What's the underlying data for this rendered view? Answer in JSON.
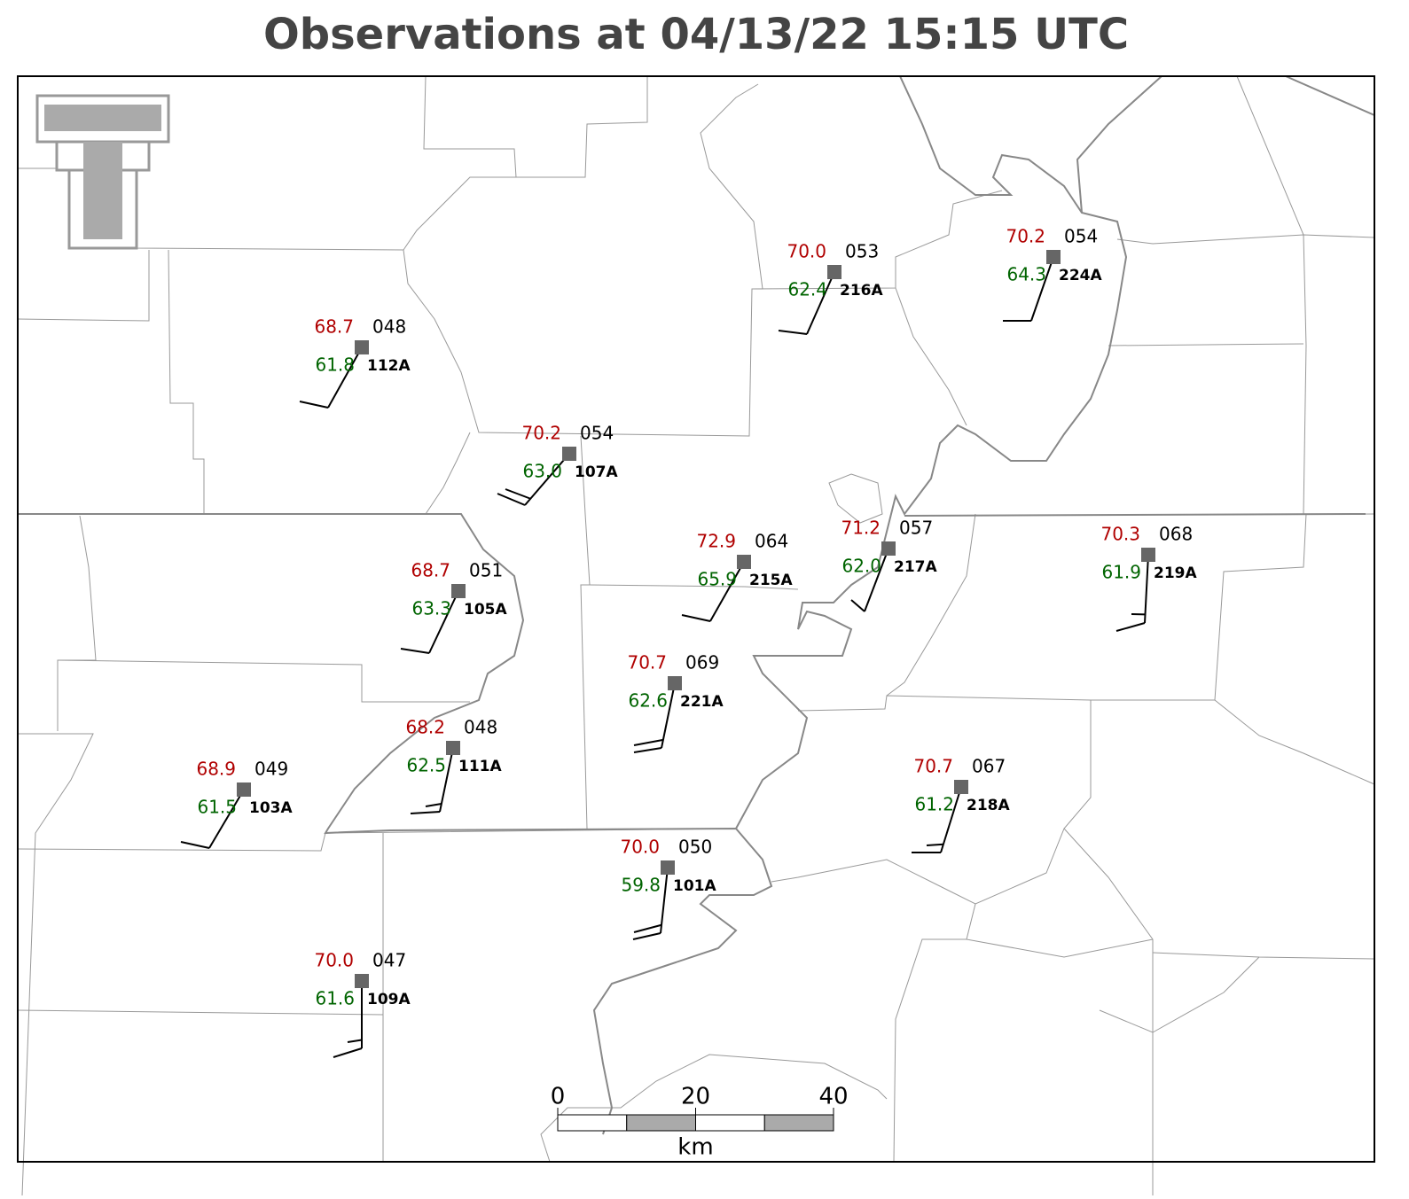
{
  "title": "Observations at 04/13/22 15:15 UTC",
  "stations": [
    {
      "id": "112A",
      "temperature": "68.7",
      "dewpoint": "61.8",
      "pressure": "048"
    },
    {
      "id": "107A",
      "temperature": "70.2",
      "dewpoint": "63.0",
      "pressure": "054"
    },
    {
      "id": "216A",
      "temperature": "70.0",
      "dewpoint": "62.4",
      "pressure": "053"
    },
    {
      "id": "224A",
      "temperature": "70.2",
      "dewpoint": "64.3",
      "pressure": "054"
    },
    {
      "id": "105A",
      "temperature": "68.7",
      "dewpoint": "63.3",
      "pressure": "051"
    },
    {
      "id": "215A",
      "temperature": "72.9",
      "dewpoint": "65.9",
      "pressure": "064"
    },
    {
      "id": "217A",
      "temperature": "71.2",
      "dewpoint": "62.0",
      "pressure": "057"
    },
    {
      "id": "219A",
      "temperature": "70.3",
      "dewpoint": "61.9",
      "pressure": "068"
    },
    {
      "id": "221A",
      "temperature": "70.7",
      "dewpoint": "62.6",
      "pressure": "069"
    },
    {
      "id": "111A",
      "temperature": "68.2",
      "dewpoint": "62.5",
      "pressure": "048"
    },
    {
      "id": "103A",
      "temperature": "68.9",
      "dewpoint": "61.5",
      "pressure": "049"
    },
    {
      "id": "218A",
      "temperature": "70.7",
      "dewpoint": "61.2",
      "pressure": "067"
    },
    {
      "id": "101A",
      "temperature": "70.0",
      "dewpoint": "59.8",
      "pressure": "050"
    },
    {
      "id": "109A",
      "temperature": "70.0",
      "dewpoint": "61.6",
      "pressure": "047"
    }
  ],
  "scale_bar": {
    "ticks": [
      0,
      20,
      40
    ],
    "unit": "km"
  }
}
